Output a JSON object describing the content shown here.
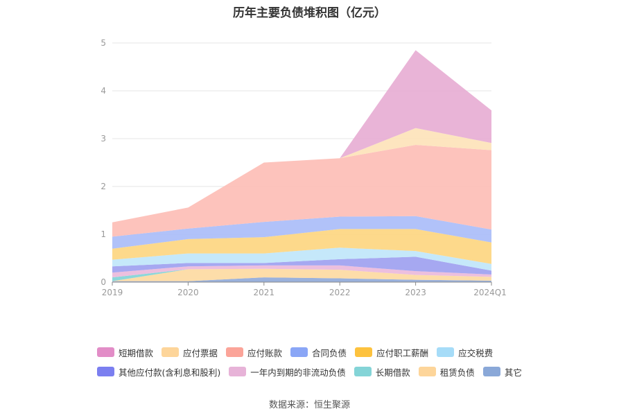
{
  "chart_data": {
    "type": "area",
    "stacked": true,
    "title": "历年主要负债堆积图（亿元）",
    "categories": [
      "2019",
      "2020",
      "2021",
      "2022",
      "2023",
      "2024Q1"
    ],
    "y_ticks": [
      "0",
      "1",
      "2",
      "3",
      "4",
      "5"
    ],
    "ylim": [
      0,
      5
    ],
    "grid": true,
    "legend_position": "bottom",
    "series": [
      {
        "name": "其它",
        "color": "#8fa8d8",
        "values": [
          0.02,
          0.02,
          0.1,
          0.08,
          0.05,
          0.03
        ]
      },
      {
        "name": "租赁负债",
        "color": "#fdd9a0",
        "values": [
          0.0,
          0.25,
          0.18,
          0.18,
          0.1,
          0.08
        ]
      },
      {
        "name": "长期借款",
        "color": "#7fd3d6",
        "values": [
          0.08,
          0.0,
          0.0,
          0.0,
          0.0,
          0.0
        ]
      },
      {
        "name": "一年内到期的非流动负债",
        "color": "#eab8da",
        "values": [
          0.1,
          0.06,
          0.07,
          0.09,
          0.08,
          0.05
        ]
      },
      {
        "name": "其他应付款(含利息和股利)",
        "color": "#9c9ef0",
        "values": [
          0.13,
          0.07,
          0.05,
          0.13,
          0.3,
          0.08
        ]
      },
      {
        "name": "应交税费",
        "color": "#bfe5f9",
        "values": [
          0.14,
          0.2,
          0.2,
          0.24,
          0.12,
          0.14
        ]
      },
      {
        "name": "应付职工薪酬",
        "color": "#fdd57e",
        "values": [
          0.23,
          0.3,
          0.34,
          0.39,
          0.46,
          0.45
        ]
      },
      {
        "name": "合同负债",
        "color": "#a8bbf8",
        "values": [
          0.25,
          0.22,
          0.32,
          0.26,
          0.27,
          0.27
        ]
      },
      {
        "name": "应付账款",
        "color": "#fdbdb5",
        "values": [
          0.3,
          0.44,
          1.24,
          1.22,
          1.49,
          1.66
        ]
      },
      {
        "name": "应付票据",
        "color": "#fde2b8",
        "values": [
          0.0,
          0.0,
          0.0,
          0.0,
          0.35,
          0.15
        ]
      },
      {
        "name": "短期借款",
        "color": "#e7acd3",
        "values": [
          0.0,
          0.0,
          0.0,
          0.0,
          1.63,
          0.68
        ]
      }
    ]
  },
  "legend": {
    "rows": [
      [
        {
          "name": "短期借款",
          "color": "#e28dc7"
        },
        {
          "name": "应付票据",
          "color": "#fdd59a"
        },
        {
          "name": "应付账款",
          "color": "#fba499"
        },
        {
          "name": "合同负债",
          "color": "#8aa6f6"
        },
        {
          "name": "应付职工薪酬",
          "color": "#fdc23e"
        },
        {
          "name": "应交税费",
          "color": "#a6dcf8"
        }
      ],
      [
        {
          "name": "其他应付款(含利息和股利)",
          "color": "#7b7ff0"
        },
        {
          "name": "一年内到期的非流动负债",
          "color": "#e7b3d8"
        },
        {
          "name": "长期借款",
          "color": "#84d4d7"
        },
        {
          "name": "租赁负债",
          "color": "#fdd59a"
        },
        {
          "name": "其它",
          "color": "#8aa8d8"
        }
      ]
    ]
  },
  "source": "数据来源：恒生聚源"
}
